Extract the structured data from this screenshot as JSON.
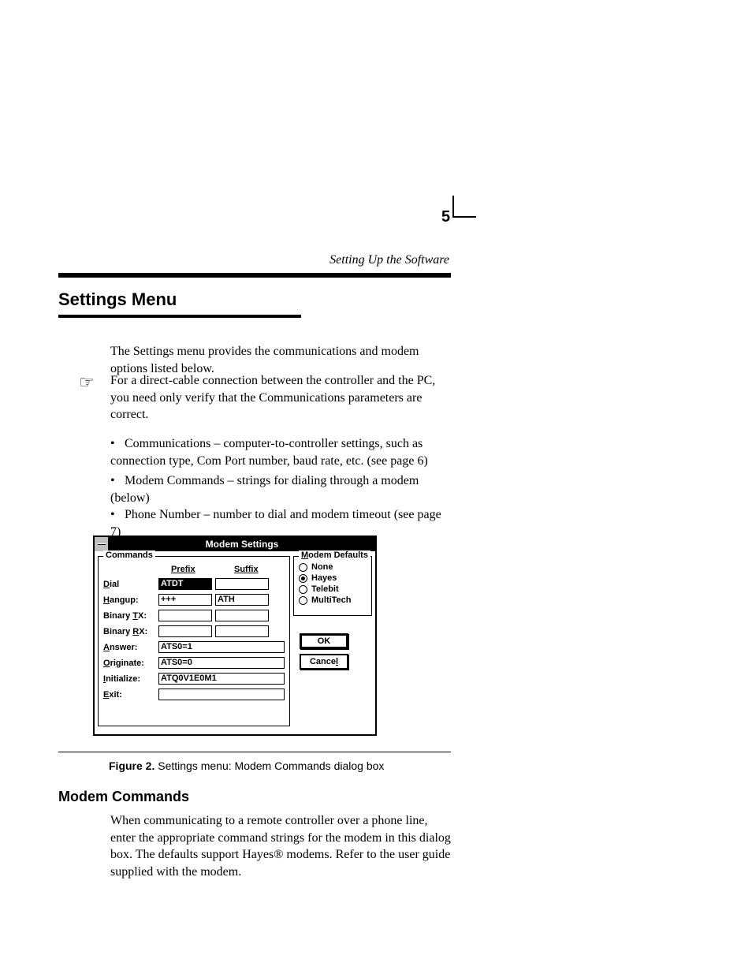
{
  "page_number": "5",
  "running_caption": "Setting Up the Software",
  "section_heading": "Settings Menu",
  "intro": "The Settings menu provides the communications and modem options listed below.",
  "note_icon": "☞",
  "note": "For a direct-cable connection between the controller and the PC, you need only verify that the Communications parameters are correct.",
  "bullets": [
    "Communications – computer-to-controller settings, such as connection type, Com Port number, baud rate, etc. (see page 6)",
    "Modem Commands – strings for dialing through a modem (below)",
    "Phone Number – number to dial and modem timeout (see page 7)"
  ],
  "figure": {
    "label": "Figure 2.",
    "text": "Settings menu: Modem Commands dialog box"
  },
  "subheading": "Modem Commands",
  "para": "When communicating to a remote controller over a phone line, enter the appropriate command strings for the modem in this dialog box. The defaults support Hayes® modems. Refer to the user guide supplied with the modem.",
  "dialog": {
    "title": "Modem Settings",
    "commands_legend": "Commands",
    "prefix_hdr": "Prefix",
    "suffix_hdr": "Suffix",
    "rows": {
      "dial": {
        "label_pre": "",
        "ul": "D",
        "label_post": "ial",
        "prefix": "ATDT",
        "suffix": ""
      },
      "hangup": {
        "label_pre": "",
        "ul": "H",
        "label_post": "angup:",
        "prefix": "+++",
        "suffix": "ATH"
      },
      "btx": {
        "label_pre": "Binary ",
        "ul": "T",
        "label_post": "X:",
        "prefix": "",
        "suffix": ""
      },
      "brx": {
        "label_pre": "Binary ",
        "ul": "R",
        "label_post": "X:",
        "prefix": "",
        "suffix": ""
      },
      "answer": {
        "label_pre": "",
        "ul": "A",
        "label_post": "nswer:",
        "value": "ATS0=1"
      },
      "originate": {
        "label_pre": "",
        "ul": "O",
        "label_post": "riginate:",
        "value": "ATS0=0"
      },
      "initialize": {
        "label_pre": "",
        "ul": "I",
        "label_post": "nitialize:",
        "value": "ATQ0V1E0M1"
      },
      "exit": {
        "label_pre": "",
        "ul": "E",
        "label_post": "xit:",
        "value": ""
      }
    },
    "defaults_legend_pre": "",
    "defaults_ul": "M",
    "defaults_legend_post": "odem Defaults",
    "defaults": [
      {
        "label": "None",
        "checked": false
      },
      {
        "label": "Hayes",
        "checked": true
      },
      {
        "label": "Telebit",
        "checked": false
      },
      {
        "label": "MultiTech",
        "checked": false
      }
    ],
    "ok": "OK",
    "cancel_pre": "Cance",
    "cancel_ul": "l"
  }
}
